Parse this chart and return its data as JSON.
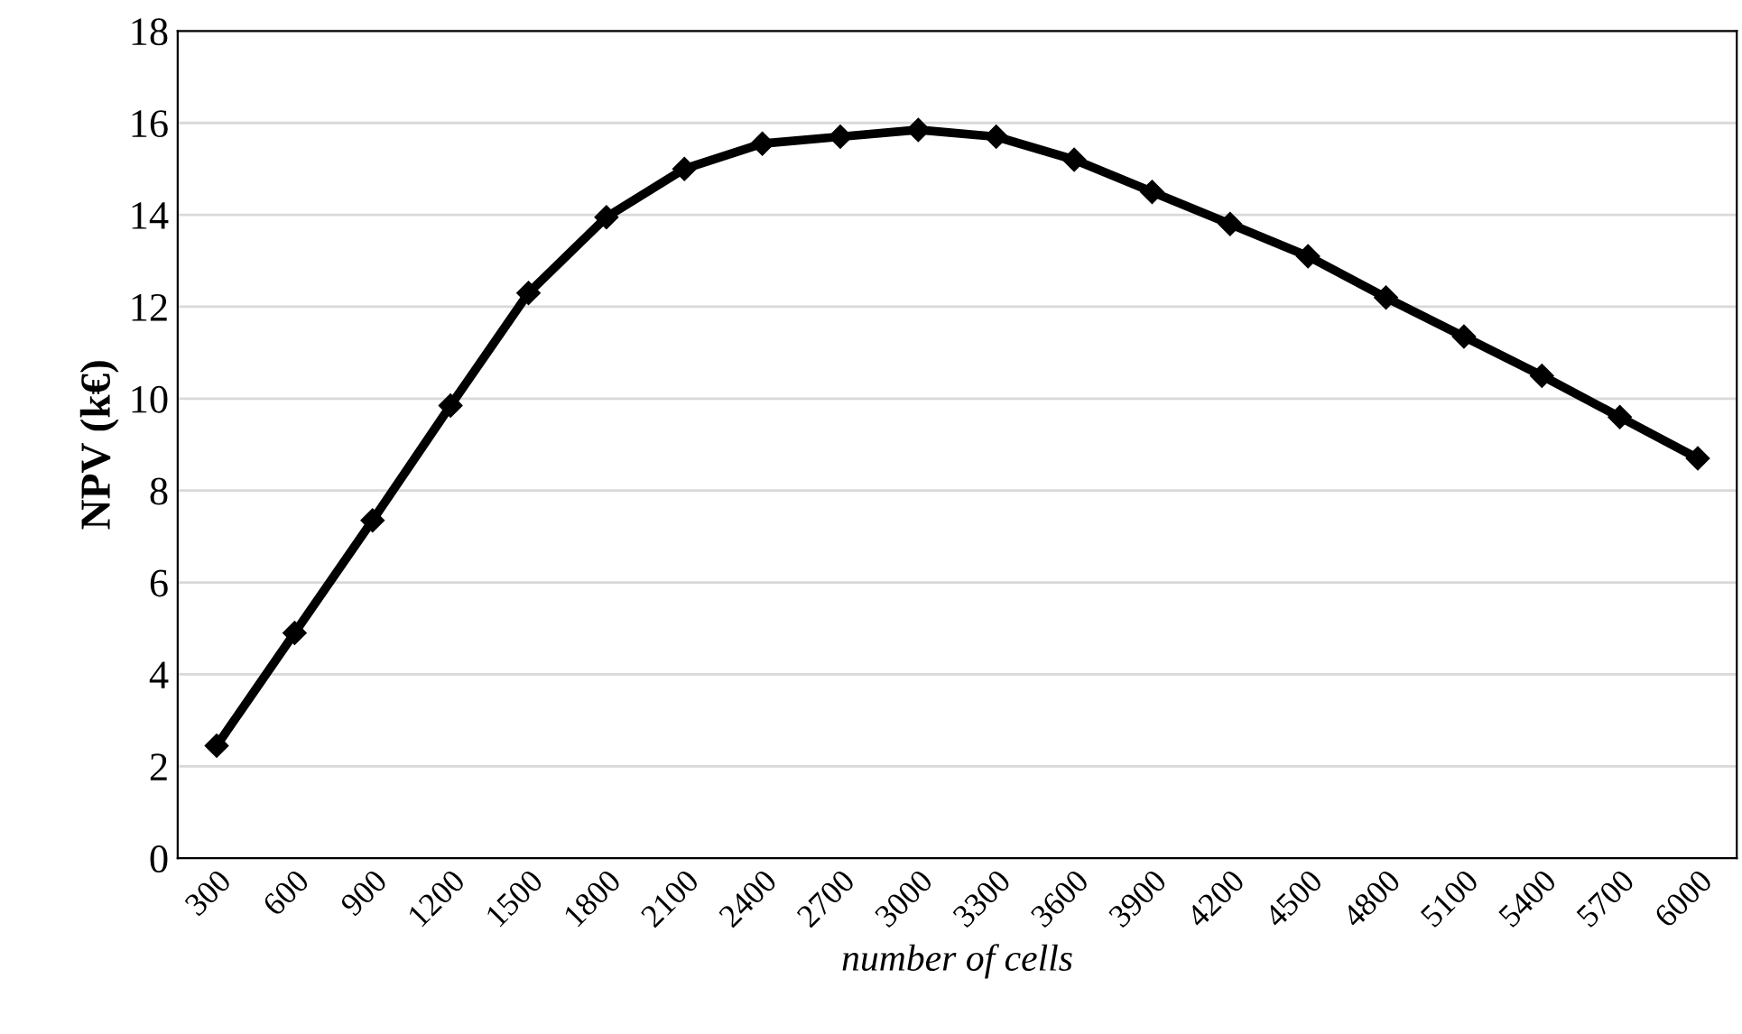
{
  "chart_data": {
    "type": "line",
    "xlabel": "number of cells",
    "ylabel": "NPV (k€)",
    "categories": [
      "300",
      "600",
      "900",
      "1200",
      "1500",
      "1800",
      "2100",
      "2400",
      "2700",
      "3000",
      "3300",
      "3600",
      "3900",
      "4200",
      "4500",
      "4800",
      "5100",
      "5400",
      "5700",
      "6000"
    ],
    "series": [
      {
        "color": "#000000",
        "values": [
          2.45,
          4.9,
          7.35,
          9.85,
          12.3,
          13.95,
          15.0,
          15.55,
          15.7,
          15.85,
          15.7,
          15.2,
          14.5,
          13.8,
          13.1,
          12.2,
          11.35,
          10.5,
          9.6,
          8.7
        ]
      }
    ],
    "ylim": [
      0,
      18
    ],
    "yticks": [
      0,
      2,
      4,
      6,
      8,
      10,
      12,
      14,
      16,
      18
    ],
    "grid": "y",
    "marker": "diamond",
    "line_style": "solid"
  }
}
